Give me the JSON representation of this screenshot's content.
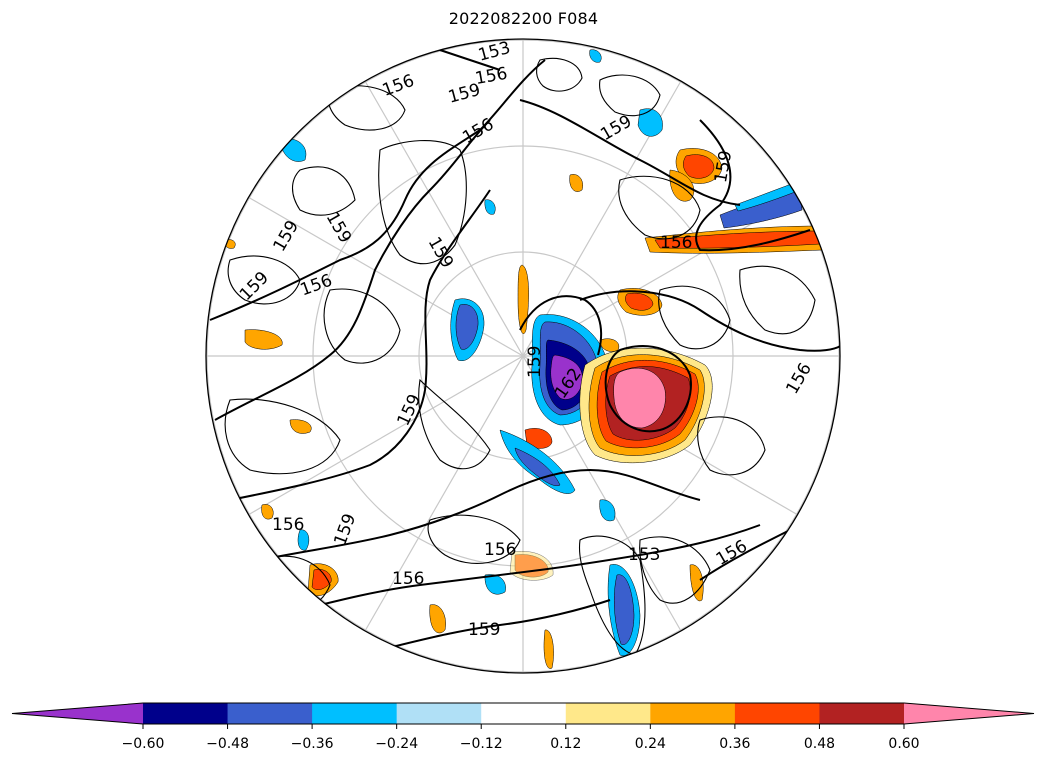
{
  "title": "2022082200 F084",
  "contour_labels": [
    "153",
    "156",
    "159",
    "162"
  ],
  "colorbar": {
    "ticks": [
      "−0.60",
      "−0.48",
      "−0.36",
      "−0.24",
      "−0.12",
      "0.12",
      "0.24",
      "0.36",
      "0.48",
      "0.60"
    ],
    "colors": [
      "#9932cc",
      "#00008b",
      "#3a5fcd",
      "#00bfff",
      "#b0e0f6",
      "#ffffff",
      "#ffe88a",
      "#ffa500",
      "#ff4500",
      "#b22222",
      "#ff85ab"
    ]
  }
}
